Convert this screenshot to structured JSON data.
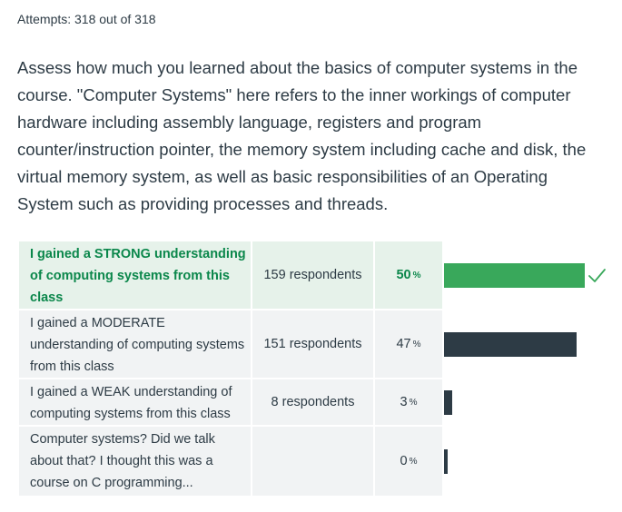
{
  "attempts": "Attempts: 318 out of 318",
  "question": "Assess how much you learned about the basics of computer systems in the course. \"Computer Systems\" here refers to the inner workings of computer hardware including assembly language, registers and program counter/instruction pointer, the memory system including cache and disk, the virtual memory system, as well as basic responsibilities of an Operating System such as providing processes and threads.",
  "answers": [
    {
      "text": "I gained a STRONG understanding of computing systems from this class",
      "respondents": "159 respondents",
      "percent": "50",
      "fraction": 0.5,
      "correct": true
    },
    {
      "text": "I gained a MODERATE understanding of computing systems from this class",
      "respondents": "151 respondents",
      "percent": "47",
      "fraction": 0.47,
      "correct": false
    },
    {
      "text": "I gained a WEAK understanding of computing systems from this class",
      "respondents": "8 respondents",
      "percent": "3",
      "fraction": 0.03,
      "correct": false
    },
    {
      "text": "Computer systems? Did we talk about that? I thought this was a course on C programming...",
      "respondents": "",
      "percent": "0",
      "fraction": 0.0,
      "correct": false
    }
  ],
  "percent_symbol": "%",
  "colors": {
    "correct": "#39a85b",
    "bar": "#2d3b45",
    "correct_text": "#0b874b"
  },
  "icons": {
    "correct_marker": "check-icon"
  }
}
